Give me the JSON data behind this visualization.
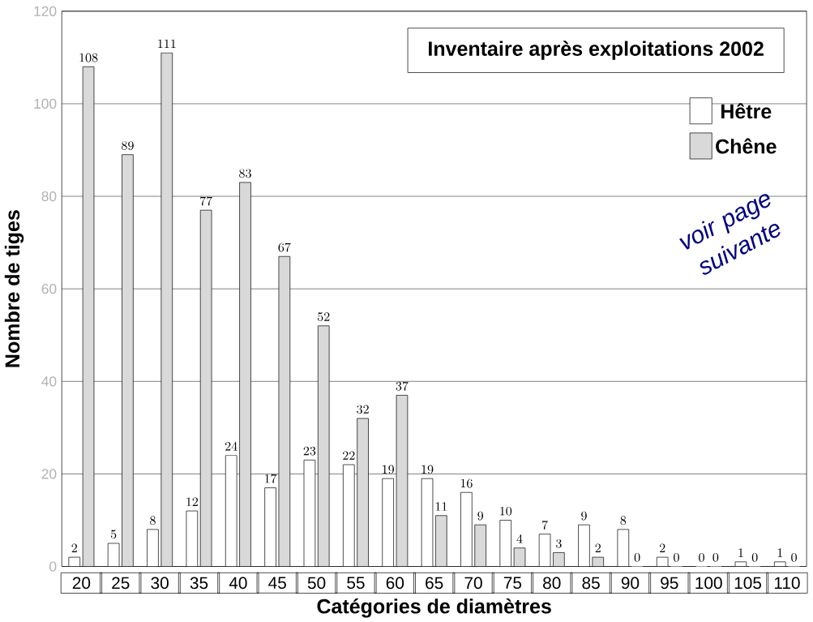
{
  "chart_data": {
    "type": "bar",
    "title": "Inventaire après exploitations 2002",
    "xlabel": "Catégories de diamètres",
    "ylabel": "Nombre de tiges",
    "categories": [
      "20",
      "25",
      "30",
      "35",
      "40",
      "45",
      "50",
      "55",
      "60",
      "65",
      "70",
      "75",
      "80",
      "85",
      "90",
      "95",
      "100",
      "105",
      "110"
    ],
    "series": [
      {
        "name": "Hêtre",
        "color": "#ffffff",
        "values": [
          2,
          5,
          8,
          12,
          24,
          17,
          23,
          22,
          19,
          19,
          16,
          10,
          7,
          9,
          8,
          2,
          0,
          1,
          1
        ]
      },
      {
        "name": "Chêne",
        "color": "#d9d9d9",
        "values": [
          108,
          89,
          111,
          77,
          83,
          67,
          52,
          32,
          37,
          11,
          9,
          4,
          3,
          2,
          0,
          0,
          0,
          0,
          0
        ]
      }
    ],
    "ylim": [
      0,
      120
    ],
    "yticks": [
      0,
      20,
      40,
      60,
      80,
      100,
      120
    ],
    "grid": "y",
    "legend": "top right",
    "data_labels": true,
    "annotations": [
      "voir page suivante"
    ]
  }
}
